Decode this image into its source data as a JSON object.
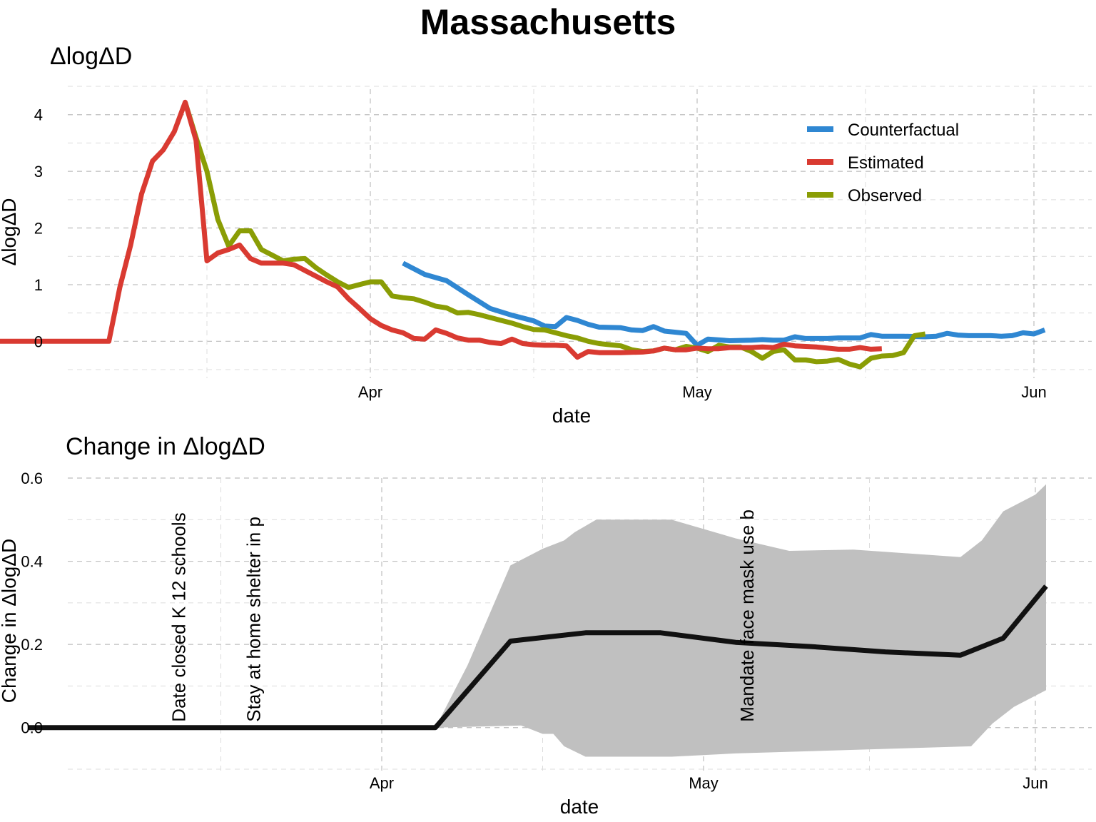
{
  "title": "Massachusetts",
  "chart_data": [
    {
      "type": "line",
      "subtitle": "ΔlogΔD",
      "xlabel": "date",
      "ylabel": "ΔlogΔD",
      "x_ticks": [
        "Apr",
        "May",
        "Jun"
      ],
      "x_tick_dates": [
        "2020-04-01",
        "2020-05-01",
        "2020-06-01"
      ],
      "xlim": [
        "2020-02-26",
        "2020-06-03"
      ],
      "y_ticks": [
        0,
        1,
        2,
        3,
        4
      ],
      "ylim": [
        -0.55,
        4.45
      ],
      "grid": true,
      "legend_position": "top-right",
      "series": [
        {
          "name": "Counterfactual",
          "color": "#2f87d2",
          "points": [
            [
              "2020-04-04",
              1.38
            ],
            [
              "2020-04-06",
              1.18
            ],
            [
              "2020-04-08",
              1.07
            ],
            [
              "2020-04-10",
              0.82
            ],
            [
              "2020-04-12",
              0.58
            ],
            [
              "2020-04-14",
              0.46
            ],
            [
              "2020-04-16",
              0.36
            ],
            [
              "2020-04-17",
              0.27
            ],
            [
              "2020-04-18",
              0.26
            ],
            [
              "2020-04-19",
              0.42
            ],
            [
              "2020-04-20",
              0.37
            ],
            [
              "2020-04-21",
              0.3
            ],
            [
              "2020-04-22",
              0.25
            ],
            [
              "2020-04-24",
              0.24
            ],
            [
              "2020-04-25",
              0.2
            ],
            [
              "2020-04-26",
              0.19
            ],
            [
              "2020-04-27",
              0.26
            ],
            [
              "2020-04-28",
              0.18
            ],
            [
              "2020-04-30",
              0.14
            ],
            [
              "2020-05-01",
              -0.07
            ],
            [
              "2020-05-02",
              0.04
            ],
            [
              "2020-05-04",
              0.01
            ],
            [
              "2020-05-06",
              0.02
            ],
            [
              "2020-05-07",
              0.03
            ],
            [
              "2020-05-08",
              0.02
            ],
            [
              "2020-05-09",
              0.02
            ],
            [
              "2020-05-10",
              0.08
            ],
            [
              "2020-05-11",
              0.05
            ],
            [
              "2020-05-13",
              0.05
            ],
            [
              "2020-05-14",
              0.06
            ],
            [
              "2020-05-15",
              0.06
            ],
            [
              "2020-05-16",
              0.06
            ],
            [
              "2020-05-17",
              0.12
            ],
            [
              "2020-05-18",
              0.09
            ],
            [
              "2020-05-20",
              0.09
            ],
            [
              "2020-05-22",
              0.08
            ],
            [
              "2020-05-23",
              0.09
            ],
            [
              "2020-05-24",
              0.14
            ],
            [
              "2020-05-25",
              0.11
            ],
            [
              "2020-05-26",
              0.1
            ],
            [
              "2020-05-28",
              0.1
            ],
            [
              "2020-05-29",
              0.09
            ],
            [
              "2020-05-30",
              0.1
            ],
            [
              "2020-05-31",
              0.15
            ],
            [
              "2020-06-01",
              0.13
            ],
            [
              "2020-06-02",
              0.2
            ]
          ]
        },
        {
          "name": "Estimated",
          "color": "#d93a31",
          "points": [
            [
              "2020-02-26",
              0
            ],
            [
              "2020-03-08",
              0
            ],
            [
              "2020-03-09",
              0.95
            ],
            [
              "2020-03-10",
              1.7
            ],
            [
              "2020-03-11",
              2.6
            ],
            [
              "2020-03-12",
              3.18
            ],
            [
              "2020-03-13",
              3.38
            ],
            [
              "2020-03-14",
              3.7
            ],
            [
              "2020-03-15",
              4.22
            ],
            [
              "2020-03-16",
              3.55
            ],
            [
              "2020-03-17",
              1.42
            ],
            [
              "2020-03-18",
              1.56
            ],
            [
              "2020-03-19",
              1.62
            ],
            [
              "2020-03-20",
              1.7
            ],
            [
              "2020-03-21",
              1.46
            ],
            [
              "2020-03-22",
              1.38
            ],
            [
              "2020-03-24",
              1.38
            ],
            [
              "2020-03-25",
              1.35
            ],
            [
              "2020-03-26",
              1.25
            ],
            [
              "2020-03-27",
              1.15
            ],
            [
              "2020-03-28",
              1.05
            ],
            [
              "2020-03-29",
              0.96
            ],
            [
              "2020-03-30",
              0.75
            ],
            [
              "2020-03-31",
              0.58
            ],
            [
              "2020-04-01",
              0.4
            ],
            [
              "2020-04-02",
              0.28
            ],
            [
              "2020-04-03",
              0.2
            ],
            [
              "2020-04-04",
              0.15
            ],
            [
              "2020-04-05",
              0.05
            ],
            [
              "2020-04-06",
              0.04
            ],
            [
              "2020-04-07",
              0.2
            ],
            [
              "2020-04-08",
              0.14
            ],
            [
              "2020-04-09",
              0.06
            ],
            [
              "2020-04-10",
              0.02
            ],
            [
              "2020-04-11",
              0.02
            ],
            [
              "2020-04-12",
              -0.02
            ],
            [
              "2020-04-13",
              -0.04
            ],
            [
              "2020-04-14",
              0.04
            ],
            [
              "2020-04-15",
              -0.04
            ],
            [
              "2020-04-16",
              -0.06
            ],
            [
              "2020-04-17",
              -0.07
            ],
            [
              "2020-04-18",
              -0.07
            ],
            [
              "2020-04-19",
              -0.08
            ],
            [
              "2020-04-20",
              -0.28
            ],
            [
              "2020-04-21",
              -0.18
            ],
            [
              "2020-04-22",
              -0.2
            ],
            [
              "2020-04-24",
              -0.2
            ],
            [
              "2020-04-26",
              -0.19
            ],
            [
              "2020-04-27",
              -0.17
            ],
            [
              "2020-04-28",
              -0.12
            ],
            [
              "2020-04-29",
              -0.15
            ],
            [
              "2020-04-30",
              -0.15
            ],
            [
              "2020-05-01",
              -0.12
            ],
            [
              "2020-05-02",
              -0.13
            ],
            [
              "2020-05-03",
              -0.13
            ],
            [
              "2020-05-04",
              -0.11
            ],
            [
              "2020-05-05",
              -0.11
            ],
            [
              "2020-05-06",
              -0.11
            ],
            [
              "2020-05-07",
              -0.1
            ],
            [
              "2020-05-08",
              -0.11
            ],
            [
              "2020-05-09",
              -0.05
            ],
            [
              "2020-05-10",
              -0.08
            ],
            [
              "2020-05-11",
              -0.09
            ],
            [
              "2020-05-12",
              -0.1
            ],
            [
              "2020-05-13",
              -0.12
            ],
            [
              "2020-05-14",
              -0.14
            ],
            [
              "2020-05-15",
              -0.14
            ],
            [
              "2020-05-16",
              -0.11
            ],
            [
              "2020-05-17",
              -0.14
            ],
            [
              "2020-05-18",
              -0.13
            ]
          ]
        },
        {
          "name": "Observed",
          "color": "#8a9d05",
          "points": [
            [
              "2020-03-15",
              4.22
            ],
            [
              "2020-03-16",
              3.6
            ],
            [
              "2020-03-17",
              3.0
            ],
            [
              "2020-03-18",
              2.15
            ],
            [
              "2020-03-19",
              1.68
            ],
            [
              "2020-03-20",
              1.95
            ],
            [
              "2020-03-21",
              1.95
            ],
            [
              "2020-03-22",
              1.62
            ],
            [
              "2020-03-23",
              1.52
            ],
            [
              "2020-03-24",
              1.42
            ],
            [
              "2020-03-25",
              1.45
            ],
            [
              "2020-03-26",
              1.46
            ],
            [
              "2020-03-27",
              1.3
            ],
            [
              "2020-03-28",
              1.17
            ],
            [
              "2020-03-29",
              1.05
            ],
            [
              "2020-03-30",
              0.95
            ],
            [
              "2020-03-31",
              1.0
            ],
            [
              "2020-04-01",
              1.05
            ],
            [
              "2020-04-02",
              1.05
            ],
            [
              "2020-04-03",
              0.8
            ],
            [
              "2020-04-04",
              0.77
            ],
            [
              "2020-04-05",
              0.75
            ],
            [
              "2020-04-06",
              0.69
            ],
            [
              "2020-04-07",
              0.62
            ],
            [
              "2020-04-08",
              0.59
            ],
            [
              "2020-04-09",
              0.5
            ],
            [
              "2020-04-10",
              0.51
            ],
            [
              "2020-04-11",
              0.47
            ],
            [
              "2020-04-12",
              0.42
            ],
            [
              "2020-04-13",
              0.37
            ],
            [
              "2020-04-14",
              0.32
            ],
            [
              "2020-04-15",
              0.26
            ],
            [
              "2020-04-16",
              0.21
            ],
            [
              "2020-04-17",
              0.2
            ],
            [
              "2020-04-18",
              0.15
            ],
            [
              "2020-04-19",
              0.1
            ],
            [
              "2020-04-20",
              0.06
            ],
            [
              "2020-04-21",
              0.0
            ],
            [
              "2020-04-22",
              -0.04
            ],
            [
              "2020-04-23",
              -0.06
            ],
            [
              "2020-04-24",
              -0.08
            ],
            [
              "2020-04-25",
              -0.15
            ],
            [
              "2020-04-26",
              -0.18
            ],
            [
              "2020-04-27",
              -0.17
            ],
            [
              "2020-04-28",
              -0.12
            ],
            [
              "2020-04-29",
              -0.15
            ],
            [
              "2020-04-30",
              -0.09
            ],
            [
              "2020-05-01",
              -0.12
            ],
            [
              "2020-05-02",
              -0.18
            ],
            [
              "2020-05-03",
              -0.07
            ],
            [
              "2020-05-04",
              -0.1
            ],
            [
              "2020-05-05",
              -0.1
            ],
            [
              "2020-05-06",
              -0.18
            ],
            [
              "2020-05-07",
              -0.3
            ],
            [
              "2020-05-08",
              -0.18
            ],
            [
              "2020-05-09",
              -0.15
            ],
            [
              "2020-05-10",
              -0.33
            ],
            [
              "2020-05-11",
              -0.33
            ],
            [
              "2020-05-12",
              -0.36
            ],
            [
              "2020-05-13",
              -0.35
            ],
            [
              "2020-05-14",
              -0.32
            ],
            [
              "2020-05-15",
              -0.4
            ],
            [
              "2020-05-16",
              -0.45
            ],
            [
              "2020-05-17",
              -0.3
            ],
            [
              "2020-05-18",
              -0.26
            ],
            [
              "2020-05-19",
              -0.25
            ],
            [
              "2020-05-20",
              -0.2
            ],
            [
              "2020-05-21",
              0.1
            ],
            [
              "2020-05-22",
              0.13
            ]
          ]
        }
      ]
    },
    {
      "type": "area",
      "subtitle": "Change in ΔlogΔD",
      "xlabel": "date",
      "ylabel": "Change in ΔlogΔD",
      "x_ticks": [
        "Apr",
        "May",
        "Jun"
      ],
      "x_tick_dates": [
        "2020-04-01",
        "2020-05-01",
        "2020-06-01"
      ],
      "xlim": [
        "2020-02-26",
        "2020-06-03"
      ],
      "y_ticks": [
        "0.0",
        "0.2",
        "0.4",
        "0.6"
      ],
      "ylim": [
        -0.1,
        0.6
      ],
      "grid": true,
      "line_color": "#111111",
      "band_color": "#c0c0c0",
      "series": [
        {
          "points": [
            [
              "2020-02-28",
              0
            ],
            [
              "2020-04-06",
              0
            ],
            [
              "2020-04-13",
              0.208
            ],
            [
              "2020-04-20",
              0.228
            ],
            [
              "2020-04-27",
              0.228
            ],
            [
              "2020-05-04",
              0.205
            ],
            [
              "2020-05-11",
              0.195
            ],
            [
              "2020-05-18",
              0.182
            ],
            [
              "2020-05-25",
              0.174
            ],
            [
              "2020-05-29",
              0.215
            ],
            [
              "2020-06-02",
              0.34
            ]
          ]
        }
      ],
      "band": {
        "upper": [
          [
            "2020-04-06",
            0
          ],
          [
            "2020-04-09",
            0.15
          ],
          [
            "2020-04-13",
            0.39
          ],
          [
            "2020-04-16",
            0.43
          ],
          [
            "2020-04-18",
            0.45
          ],
          [
            "2020-04-19",
            0.47
          ],
          [
            "2020-04-21",
            0.5
          ],
          [
            "2020-04-28",
            0.5
          ],
          [
            "2020-05-04",
            0.455
          ],
          [
            "2020-05-09",
            0.425
          ],
          [
            "2020-05-15",
            0.428
          ],
          [
            "2020-05-25",
            0.41
          ],
          [
            "2020-05-27",
            0.45
          ],
          [
            "2020-05-29",
            0.52
          ],
          [
            "2020-06-01",
            0.56
          ],
          [
            "2020-06-02",
            0.585
          ]
        ],
        "lower": [
          [
            "2020-06-02",
            0.09
          ],
          [
            "2020-05-30",
            0.05
          ],
          [
            "2020-05-28",
            0.01
          ],
          [
            "2020-05-26",
            -0.045
          ],
          [
            "2020-05-04",
            -0.062
          ],
          [
            "2020-04-28",
            -0.07
          ],
          [
            "2020-04-20",
            -0.07
          ],
          [
            "2020-04-18",
            -0.045
          ],
          [
            "2020-04-17",
            -0.015
          ],
          [
            "2020-04-16",
            -0.015
          ],
          [
            "2020-04-14",
            0.005
          ],
          [
            "2020-04-06",
            0
          ]
        ]
      },
      "annotations": [
        {
          "label": "Date closed K 12 schools",
          "date": "2020-03-13"
        },
        {
          "label": "Stay at home  shelter in p",
          "date": "2020-03-20"
        },
        {
          "label": "Mandate face mask use b",
          "date": "2020-05-05"
        }
      ]
    }
  ]
}
